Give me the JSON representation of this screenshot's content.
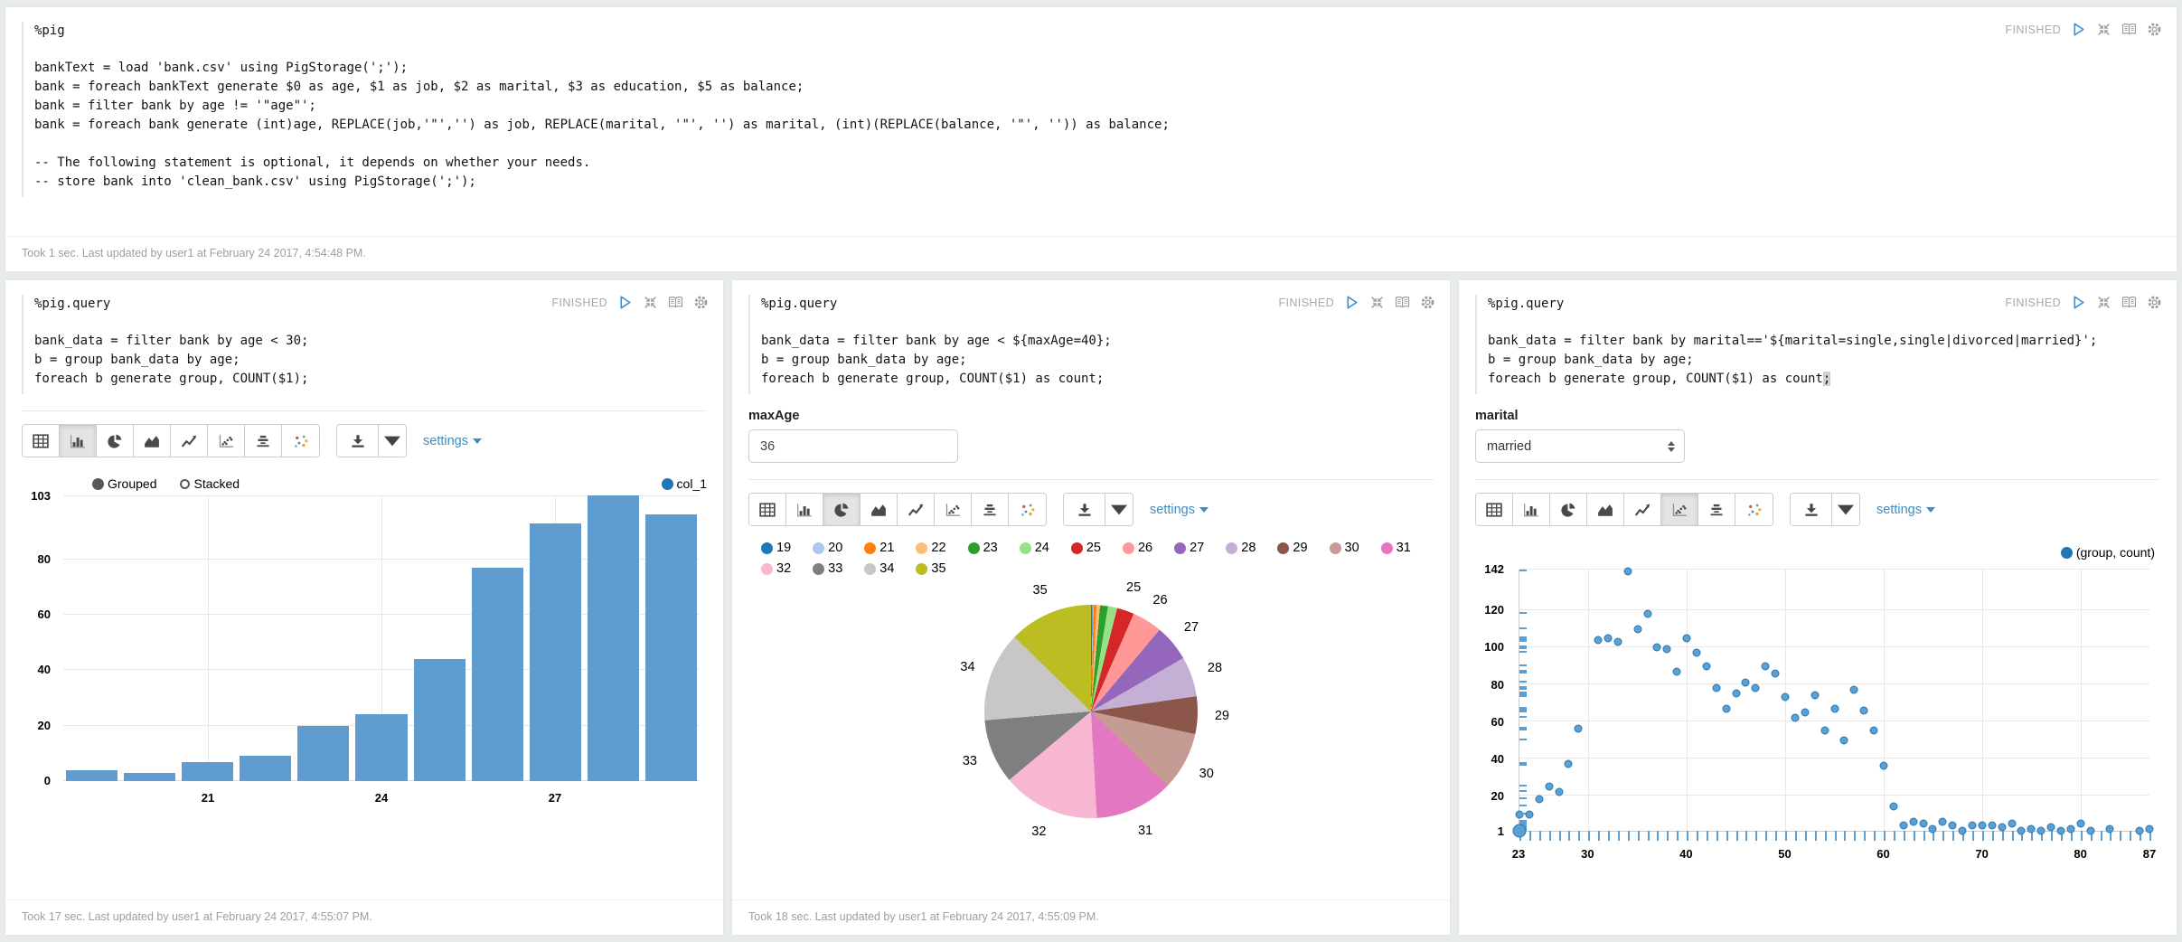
{
  "paragraphs": {
    "pig": {
      "title": "%pig",
      "status": "FINISHED",
      "code_lines": [
        "bankText = load 'bank.csv' using PigStorage(';');",
        "bank = foreach bankText generate $0 as age, $1 as job, $2 as marital, $3 as education, $5 as balance;",
        "bank = filter bank by age != '\"age\"';",
        "bank = foreach bank generate (int)age, REPLACE(job,'\"','') as job, REPLACE(marital, '\"', '') as marital, (int)(REPLACE(balance, '\"', '')) as balance;",
        "",
        "-- The following statement is optional, it depends on whether your needs.",
        "-- store bank into 'clean_bank.csv' using PigStorage(';');"
      ],
      "footer": "Took 1 sec. Last updated by user1 at February 24 2017, 4:54:48 PM."
    },
    "bar": {
      "title": "%pig.query",
      "status": "FINISHED",
      "code_lines": [
        "bank_data = filter bank by age < 30;",
        "b = group bank_data by age;",
        "foreach b generate group, COUNT($1);"
      ],
      "selected_chart": "bar-chart",
      "settings_label": "settings",
      "legend": {
        "grouped": "Grouped",
        "stacked": "Stacked",
        "series": "col_1"
      },
      "footer": "Took 17 sec. Last updated by user1 at February 24 2017, 4:55:07 PM."
    },
    "pie": {
      "title": "%pig.query",
      "status": "FINISHED",
      "code_lines": [
        "bank_data = filter bank by age < ${maxAge=40};",
        "b = group bank_data by age;",
        "foreach b generate group, COUNT($1) as count;"
      ],
      "form": {
        "label": "maxAge",
        "value": "36"
      },
      "selected_chart": "pie-chart",
      "settings_label": "settings",
      "footer": "Took 18 sec. Last updated by user1 at February 24 2017, 4:55:09 PM."
    },
    "scatter": {
      "title": "%pig.query",
      "status": "FINISHED",
      "code_lines": [
        "bank_data = filter bank by marital=='${marital=single,single|divorced|married}';",
        "b = group bank_data by age;",
        "foreach b generate group, COUNT($1) as count;"
      ],
      "cursor_line": 2,
      "form": {
        "label": "marital",
        "value": "married"
      },
      "selected_chart": "scatter-chart",
      "settings_label": "settings",
      "legend_label": "(group, count)"
    }
  },
  "chart_data": [
    {
      "id": "bar",
      "type": "bar",
      "categories": [
        19,
        20,
        21,
        22,
        23,
        24,
        25,
        26,
        27,
        28,
        29
      ],
      "values": [
        4,
        3,
        7,
        9,
        20,
        24,
        44,
        77,
        93,
        103,
        96
      ],
      "series_name": "col_1",
      "bar_color": "#5f9dd0",
      "legend_dot_color": "#1f77b4",
      "ylim": [
        0,
        103
      ],
      "yticks": [
        0,
        20,
        40,
        60,
        80
      ],
      "ytop_label": "103",
      "xtick_labels": [
        {
          "index": 2,
          "label": "21"
        },
        {
          "index": 5,
          "label": "24"
        },
        {
          "index": 8,
          "label": "27"
        }
      ],
      "grid": true,
      "legend_position": "top"
    },
    {
      "id": "pie",
      "type": "pie",
      "categories": [
        "19",
        "20",
        "21",
        "22",
        "23",
        "24",
        "25",
        "26",
        "27",
        "28",
        "29",
        "30",
        "31",
        "32",
        "33",
        "34",
        "35"
      ],
      "values": [
        4,
        3,
        7,
        9,
        20,
        24,
        44,
        77,
        93,
        103,
        96,
        150,
        200,
        250,
        165,
        230,
        215
      ],
      "colors": [
        "#1f77b4",
        "#aec7e8",
        "#ff7f0e",
        "#ffbb78",
        "#2ca02c",
        "#98df8a",
        "#d62728",
        "#ff9896",
        "#9467bd",
        "#c5b0d5",
        "#8c564b",
        "#c49c94",
        "#e377c2",
        "#f7b6d2",
        "#7f7f7f",
        "#c7c7c7",
        "#bcbd22"
      ],
      "label_min_fraction": 0.024,
      "start_angle_deg": 0,
      "direction": "clockwise",
      "legend_position": "top"
    },
    {
      "id": "scatter",
      "type": "scatter",
      "series_name": "(group, count)",
      "points": [
        [
          23,
          10
        ],
        [
          24,
          10
        ],
        [
          25,
          18
        ],
        [
          26,
          25
        ],
        [
          27,
          22
        ],
        [
          28,
          37
        ],
        [
          29,
          56
        ],
        [
          31,
          104
        ],
        [
          32,
          105
        ],
        [
          33,
          103
        ],
        [
          34,
          141
        ],
        [
          35,
          110
        ],
        [
          36,
          118
        ],
        [
          37,
          100
        ],
        [
          38,
          99
        ],
        [
          39,
          87
        ],
        [
          40,
          105
        ],
        [
          41,
          97
        ],
        [
          42,
          90
        ],
        [
          43,
          78
        ],
        [
          44,
          67
        ],
        [
          45,
          75
        ],
        [
          46,
          81
        ],
        [
          47,
          78
        ],
        [
          48,
          90
        ],
        [
          49,
          86
        ],
        [
          50,
          73
        ],
        [
          51,
          62
        ],
        [
          52,
          65
        ],
        [
          53,
          74
        ],
        [
          54,
          55
        ],
        [
          55,
          67
        ],
        [
          56,
          50
        ],
        [
          57,
          77
        ],
        [
          58,
          66
        ],
        [
          59,
          55
        ],
        [
          60,
          36
        ],
        [
          61,
          14
        ],
        [
          62,
          4
        ],
        [
          63,
          6
        ],
        [
          64,
          5
        ],
        [
          65,
          2
        ],
        [
          66,
          6
        ],
        [
          67,
          4
        ],
        [
          68,
          1
        ],
        [
          69,
          4
        ],
        [
          70,
          4
        ],
        [
          71,
          4
        ],
        [
          72,
          3
        ],
        [
          73,
          5
        ],
        [
          74,
          1
        ],
        [
          75,
          2
        ],
        [
          76,
          1
        ],
        [
          77,
          3
        ],
        [
          78,
          1
        ],
        [
          79,
          2
        ],
        [
          80,
          5
        ],
        [
          81,
          1
        ],
        [
          83,
          2
        ],
        [
          86,
          1
        ],
        [
          87,
          2
        ]
      ],
      "origin_point": [
        23,
        1
      ],
      "dot_color": "#5b9fd3",
      "xlim": [
        23,
        87
      ],
      "ylim": [
        1,
        142
      ],
      "yticks_labeled": [
        142,
        120,
        100,
        80,
        60,
        40,
        20,
        1
      ],
      "ygrid": [
        20,
        40,
        60,
        80,
        100,
        120,
        142
      ],
      "xticks_labeled": [
        23,
        30,
        40,
        50,
        60,
        70,
        80,
        87
      ],
      "xgrid": [
        30,
        40,
        50,
        60,
        70,
        80
      ],
      "rug_x_range": [
        23,
        87
      ],
      "grid": true,
      "legend_position": "top-right"
    }
  ]
}
